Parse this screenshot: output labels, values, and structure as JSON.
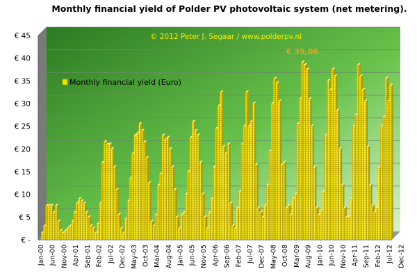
{
  "chart_data": {
    "type": "bar",
    "title": "Monthly financial yield of Polder PV photovoltaic system (net metering).",
    "copyright": "© 2012 Peter J. Segaar / www.polderpv.nl",
    "legend_label": "Monthly financial yield (Euro)",
    "peak_annotation": "€ 39,06",
    "xlabel": "",
    "ylabel": "",
    "ylim": [
      0,
      45
    ],
    "y_ticks": [
      "€ -",
      "€ 5",
      "€ 10",
      "€ 15",
      "€ 20",
      "€ 25",
      "€ 30",
      "€ 35",
      "€ 40",
      "€ 45"
    ],
    "x_tick_labels": [
      "Jan-00",
      "Jun-00",
      "Nov-00",
      "Apr-01",
      "Sep-01",
      "Feb-02",
      "Jul-02",
      "Dec-02",
      "May-03",
      "Oct-03",
      "Mar-04",
      "Aug-04",
      "Jan-05",
      "Jun-05",
      "Nov-05",
      "Apr-06",
      "Sep-06",
      "Feb-07",
      "Jul-07",
      "Dec-07",
      "May-08",
      "Oct-08",
      "Mar-09",
      "Aug-09",
      "Jan-10",
      "Jun-10",
      "Nov-10",
      "Apr-11",
      "Sep-11",
      "Feb-12",
      "Jul-12",
      "Dec-12"
    ],
    "x_tick_step_months": 5,
    "grid": true,
    "legend_position": "top-left",
    "colors": {
      "bar": "#f2e600",
      "bar_dark": "#b09a00",
      "plot_bg": "#5bb83c",
      "grid": "#6a8a6a",
      "title": "#000000",
      "copyright": "#f5f000",
      "annotation": "#e8a21a"
    },
    "values": [
      1.5,
      3.0,
      7.5,
      7.5,
      7.5,
      6.0,
      7.5,
      4.0,
      2.0,
      1.5,
      2.0,
      2.5,
      3.0,
      4.0,
      6.0,
      8.0,
      9.0,
      8.5,
      8.0,
      6.0,
      5.0,
      3.0,
      2.5,
      1.5,
      3.5,
      8.0,
      17.0,
      21.5,
      21.0,
      21.0,
      20.0,
      16.0,
      11.0,
      5.5,
      2.5,
      1.5,
      4.5,
      8.5,
      13.5,
      19.0,
      23.0,
      23.5,
      25.5,
      24.0,
      21.5,
      18.0,
      12.5,
      4.0,
      3.0,
      5.5,
      12.0,
      14.5,
      23.0,
      22.0,
      22.5,
      20.0,
      16.0,
      11.0,
      5.0,
      2.5,
      5.5,
      6.0,
      10.0,
      15.0,
      22.5,
      26.0,
      24.0,
      23.0,
      17.0,
      10.0,
      5.0,
      2.5,
      6.0,
      9.0,
      16.0,
      24.5,
      29.5,
      32.5,
      20.5,
      19.0,
      21.0,
      8.0,
      3.0,
      2.5,
      7.0,
      10.5,
      21.0,
      25.0,
      32.5,
      25.0,
      26.0,
      30.0,
      16.5,
      7.0,
      6.0,
      5.0,
      7.5,
      12.0,
      19.5,
      30.0,
      35.5,
      34.5,
      30.5,
      16.5,
      17.0,
      7.0,
      7.5,
      5.5,
      9.0,
      10.0,
      25.5,
      31.0,
      39.06,
      38.5,
      37.5,
      31.0,
      25.0,
      16.0,
      7.0,
      5.5,
      6.5,
      10.5,
      23.0,
      35.0,
      33.0,
      37.5,
      36.0,
      28.5,
      20.0,
      12.0,
      7.0,
      5.0,
      5.0,
      9.0,
      25.0,
      27.5,
      38.5,
      36.0,
      33.0,
      30.5,
      20.5,
      12.0,
      7.5,
      6.0,
      7.0,
      16.0,
      25.0,
      27.0,
      35.5,
      30.5,
      34.0
    ]
  }
}
